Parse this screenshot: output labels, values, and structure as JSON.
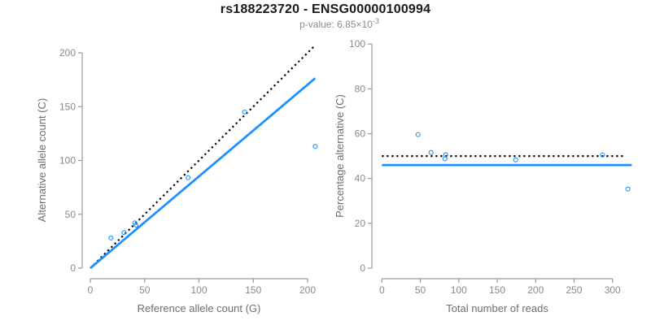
{
  "header": {
    "title": "rs188223720 - ENSG00000100994",
    "p_value_prefix": "p-value: 6.85×10",
    "p_value_exponent": "-3"
  },
  "colors": {
    "accent_blue": "#1E90FF",
    "dotted_black": "#000000",
    "axis_gray": "#9a9a9a",
    "tick_text_gray": "#8a8a8a",
    "title_black": "#1a1a1a",
    "subtitle_gray": "#8c8c8c"
  },
  "chart_data": [
    {
      "type": "scatter",
      "panel": "left",
      "xlabel": "Reference allele count (G)",
      "ylabel": "Alternative allele count (C)",
      "xlim": [
        0,
        207
      ],
      "ylim": [
        0,
        207
      ],
      "xticks": [
        0,
        50,
        100,
        150,
        200
      ],
      "yticks": [
        0,
        50,
        100,
        150,
        200
      ],
      "grid": false,
      "legend": "none",
      "point_color": "#1E90FF",
      "points": [
        [
          19,
          28
        ],
        [
          31,
          33
        ],
        [
          41,
          42
        ],
        [
          42,
          40
        ],
        [
          90,
          84
        ],
        [
          142,
          145
        ],
        [
          207,
          113
        ]
      ],
      "lines": [
        {
          "name": "identity-line",
          "style": "dotted",
          "color": "#000000",
          "from": [
            0,
            0
          ],
          "to": [
            207,
            207
          ]
        },
        {
          "name": "fitted-ratio-line",
          "style": "solid",
          "color": "#1E90FF",
          "from": [
            0,
            0
          ],
          "to": [
            207,
            176.4
          ]
        }
      ]
    },
    {
      "type": "scatter",
      "panel": "right",
      "xlabel": "Total number of reads",
      "ylabel": "Percentage alternative (C)",
      "xlim": [
        0,
        325
      ],
      "ylim": [
        0,
        100
      ],
      "xticks": [
        0,
        50,
        100,
        150,
        200,
        250,
        300
      ],
      "yticks": [
        0,
        20,
        40,
        60,
        80,
        100
      ],
      "grid": false,
      "legend": "none",
      "point_color": "#1E90FF",
      "points": [
        [
          47,
          59.6
        ],
        [
          64,
          51.6
        ],
        [
          83,
          50.6
        ],
        [
          82,
          48.8
        ],
        [
          174,
          48.3
        ],
        [
          287,
          50.5
        ],
        [
          320,
          35.3
        ]
      ],
      "lines": [
        {
          "name": "expected-50pct-line",
          "style": "dotted",
          "color": "#000000",
          "from": [
            0,
            50
          ],
          "to": [
            315,
            50
          ]
        },
        {
          "name": "observed-pct-line",
          "style": "solid",
          "color": "#1E90FF",
          "from": [
            0,
            46
          ],
          "to": [
            325,
            46
          ]
        }
      ]
    }
  ]
}
